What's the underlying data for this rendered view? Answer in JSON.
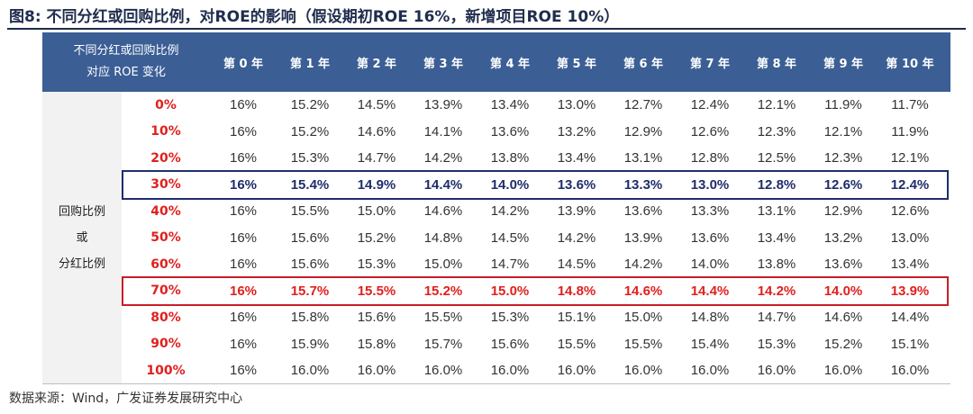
{
  "title": "图8:  不同分红或回购比例，对ROE的影响（假设期初ROE 16%，新增项目ROE 10%）",
  "source": "数据来源：Wind，广发证券发展研究中心",
  "chart_data": {
    "type": "table",
    "corner_label_line1": "不同分红或回购比例",
    "corner_label_line2": "对应 ROE 变化",
    "row_group_label": [
      "回购比例",
      "或",
      "分红比例"
    ],
    "columns": [
      "第 0 年",
      "第 1 年",
      "第 2 年",
      "第 3 年",
      "第 4 年",
      "第 5 年",
      "第 6 年",
      "第 7 年",
      "第 8 年",
      "第 9 年",
      "第 10 年"
    ],
    "rows": [
      {
        "ratio": "0%",
        "values": [
          "16%",
          "15.2%",
          "14.5%",
          "13.9%",
          "13.4%",
          "13.0%",
          "12.7%",
          "12.4%",
          "12.1%",
          "11.9%",
          "11.7%"
        ]
      },
      {
        "ratio": "10%",
        "values": [
          "16%",
          "15.2%",
          "14.6%",
          "14.1%",
          "13.6%",
          "13.2%",
          "12.9%",
          "12.6%",
          "12.3%",
          "12.1%",
          "11.9%"
        ]
      },
      {
        "ratio": "20%",
        "values": [
          "16%",
          "15.3%",
          "14.7%",
          "14.2%",
          "13.8%",
          "13.4%",
          "13.1%",
          "12.8%",
          "12.5%",
          "12.3%",
          "12.1%"
        ]
      },
      {
        "ratio": "30%",
        "values": [
          "16%",
          "15.4%",
          "14.9%",
          "14.4%",
          "14.0%",
          "13.6%",
          "13.3%",
          "13.0%",
          "12.8%",
          "12.6%",
          "12.4%"
        ],
        "highlight": "blue"
      },
      {
        "ratio": "40%",
        "values": [
          "16%",
          "15.5%",
          "15.0%",
          "14.6%",
          "14.2%",
          "13.9%",
          "13.6%",
          "13.3%",
          "13.1%",
          "12.9%",
          "12.6%"
        ]
      },
      {
        "ratio": "50%",
        "values": [
          "16%",
          "15.6%",
          "15.2%",
          "14.8%",
          "14.5%",
          "14.2%",
          "13.9%",
          "13.6%",
          "13.4%",
          "13.2%",
          "13.0%"
        ]
      },
      {
        "ratio": "60%",
        "values": [
          "16%",
          "15.6%",
          "15.3%",
          "15.0%",
          "14.7%",
          "14.5%",
          "14.2%",
          "14.0%",
          "13.8%",
          "13.6%",
          "13.4%"
        ]
      },
      {
        "ratio": "70%",
        "values": [
          "16%",
          "15.7%",
          "15.5%",
          "15.2%",
          "15.0%",
          "14.8%",
          "14.6%",
          "14.4%",
          "14.2%",
          "14.0%",
          "13.9%"
        ],
        "highlight": "red"
      },
      {
        "ratio": "80%",
        "values": [
          "16%",
          "15.8%",
          "15.6%",
          "15.5%",
          "15.3%",
          "15.1%",
          "15.0%",
          "14.8%",
          "14.7%",
          "14.6%",
          "14.4%"
        ]
      },
      {
        "ratio": "90%",
        "values": [
          "16%",
          "15.9%",
          "15.8%",
          "15.7%",
          "15.6%",
          "15.5%",
          "15.5%",
          "15.4%",
          "15.3%",
          "15.2%",
          "15.1%"
        ]
      },
      {
        "ratio": "100%",
        "values": [
          "16%",
          "16.0%",
          "16.0%",
          "16.0%",
          "16.0%",
          "16.0%",
          "16.0%",
          "16.0%",
          "16.0%",
          "16.0%",
          "16.0%"
        ]
      }
    ],
    "colors": {
      "header_bg": "#3b5e95",
      "ratio_text": "#e0201e",
      "highlight_blue": "#1f2d6b",
      "highlight_red": "#c81e28"
    }
  }
}
